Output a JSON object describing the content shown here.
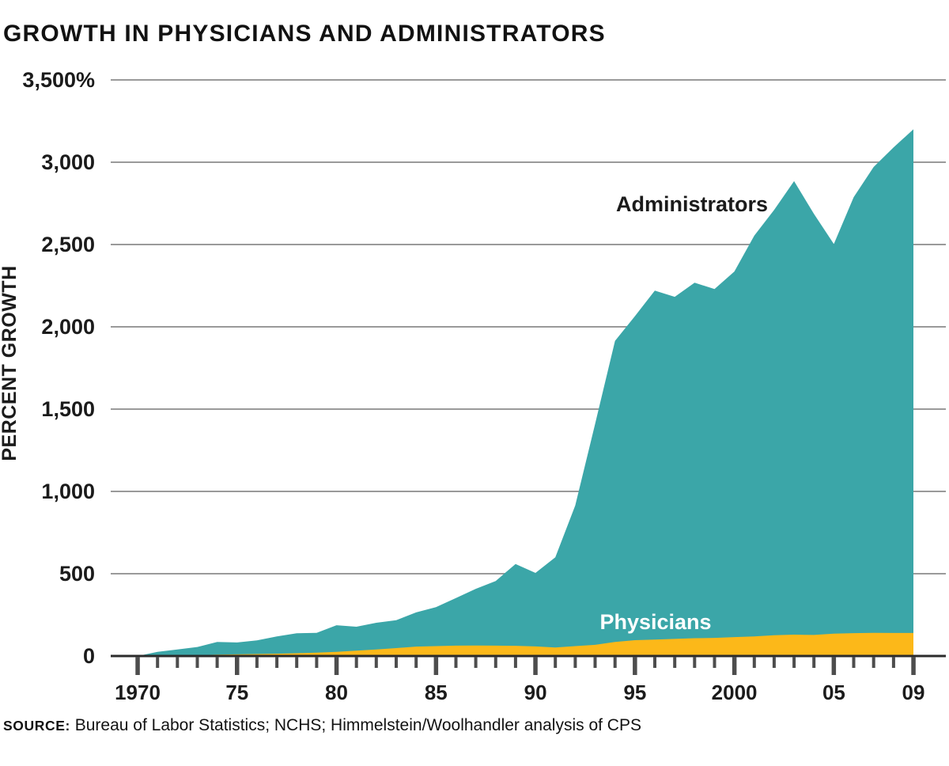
{
  "page": {
    "title": "GROWTH IN PHYSICIANS AND ADMINISTRATORS",
    "source_label": "SOURCE:",
    "source_text": " Bureau of Labor Statistics; NCHS; Himmelstein/​Woolhandler analysis of CPS"
  },
  "colors": {
    "administrators_fill": "#3BA6A8",
    "physicians_fill": "#FCB819",
    "gridline": "#9A9A9A",
    "axis_line": "#2B2B2B",
    "tick": "#4D4D4D",
    "text": "#1B1B1B",
    "administrators_label": "#1B1B1B",
    "physicians_label": "#FFFFFF"
  },
  "chart_data": {
    "type": "area",
    "title": "GROWTH IN PHYSICIANS AND ADMINISTRATORS",
    "xlabel": "",
    "ylabel": "PERCENT GROWTH",
    "ylim": [
      0,
      3500
    ],
    "ytick_interval": 500,
    "ytick_values": [
      0,
      500,
      1000,
      1500,
      2000,
      2500,
      3000,
      3500
    ],
    "ytick_labels": [
      "0",
      "500",
      "1,000",
      "1,500",
      "2,000",
      "2,500",
      "3,000",
      "3,500%"
    ],
    "grid": true,
    "legend_position": "inline-area-labels",
    "x": [
      1970,
      1971,
      1972,
      1973,
      1974,
      1975,
      1976,
      1977,
      1978,
      1979,
      1980,
      1981,
      1982,
      1983,
      1984,
      1985,
      1986,
      1987,
      1988,
      1989,
      1990,
      1991,
      1992,
      1993,
      1994,
      1995,
      1996,
      1997,
      1998,
      1999,
      2000,
      2001,
      2002,
      2003,
      2004,
      2005,
      2006,
      2007,
      2008,
      2009
    ],
    "xtick_minor_every_year": true,
    "xtick_major_years": [
      1970,
      1975,
      1980,
      1985,
      1990,
      1995,
      2000,
      2005,
      2009
    ],
    "xtick_labels": [
      "1970",
      "75",
      "80",
      "85",
      "90",
      "95",
      "2000",
      "05",
      "09"
    ],
    "series": [
      {
        "name": "Administrators",
        "values": [
          0,
          25,
          40,
          55,
          85,
          82,
          95,
          119,
          138,
          141,
          187,
          178,
          202,
          218,
          265,
          297,
          352,
          408,
          456,
          559,
          505,
          600,
          915,
          1410,
          1915,
          2065,
          2220,
          2182,
          2268,
          2230,
          2336,
          2554,
          2710,
          2885,
          2686,
          2503,
          2788,
          2971,
          3090,
          3200
        ]
      },
      {
        "name": "Physicians",
        "values": [
          0,
          2,
          4,
          6,
          8,
          10,
          12,
          14,
          17,
          20,
          25,
          32,
          40,
          48,
          57,
          60,
          63,
          64,
          63,
          62,
          58,
          52,
          60,
          68,
          85,
          96,
          100,
          104,
          108,
          110,
          115,
          119,
          126,
          130,
          128,
          136,
          139,
          141,
          140,
          140
        ]
      }
    ]
  }
}
